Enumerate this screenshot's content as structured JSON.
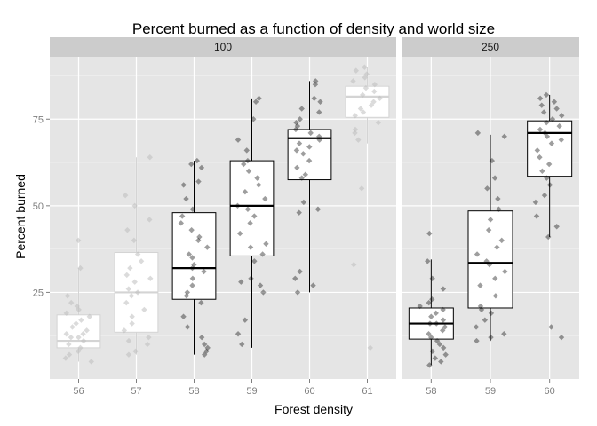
{
  "chart_data": {
    "type": "boxplot",
    "title": "Percent burned as a function of density and world size",
    "xlabel": "Forest density",
    "ylabel": "Percent burned",
    "ylim": [
      0,
      93
    ],
    "yticks": [
      25,
      50,
      75
    ],
    "grid": true,
    "facet_variable": "world size",
    "facets": [
      {
        "label": "100",
        "categories": [
          "56",
          "57",
          "58",
          "59",
          "60",
          "61"
        ],
        "boxes": [
          {
            "x": "56",
            "whisker_low": 5,
            "q1": 9,
            "median": 11,
            "q3": 18.5,
            "whisker_high": 32,
            "color": "#d4d4d4",
            "points": [
              40,
              32,
              24,
              22,
              21,
              20,
              19,
              18,
              17,
              16,
              15,
              14,
              13,
              13,
              12,
              12,
              11,
              10,
              9,
              8,
              7,
              6,
              5
            ]
          },
          {
            "x": "57",
            "whisker_low": 7,
            "q1": 13.5,
            "median": 25,
            "q3": 36.5,
            "whisker_high": 64,
            "color": "#d4d4d4",
            "points": [
              64,
              53,
              50,
              46,
              43,
              40,
              36,
              34,
              32,
              30,
              29,
              28,
              26,
              25,
              24,
              22,
              20,
              18,
              16,
              14,
              12,
              11,
              10,
              8,
              7
            ]
          },
          {
            "x": "58",
            "whisker_low": 7,
            "q1": 23,
            "median": 32,
            "q3": 48,
            "whisker_high": 63,
            "color": "#000000",
            "points": [
              63,
              62,
              61,
              57,
              56,
              52,
              49,
              47,
              45,
              43,
              41,
              40,
              38,
              36,
              35,
              33,
              32,
              31,
              29,
              27,
              25,
              24,
              22,
              18,
              15,
              12,
              10,
              9,
              8,
              7
            ]
          },
          {
            "x": "59",
            "whisker_low": 9,
            "q1": 35.5,
            "median": 50,
            "q3": 63,
            "whisker_high": 81,
            "color": "#000000",
            "points": [
              81,
              80,
              75,
              69,
              66,
              63,
              62,
              60,
              58,
              56,
              54,
              52,
              50,
              49,
              47,
              45,
              42,
              39,
              38,
              36,
              34,
              29,
              28,
              27,
              25,
              17,
              13,
              10
            ]
          },
          {
            "x": "60",
            "whisker_low": 25,
            "q1": 57.5,
            "median": 69.5,
            "q3": 72,
            "whisker_high": 86,
            "color": "#000000",
            "points": [
              86,
              85,
              81,
              80,
              78,
              77,
              75,
              74,
              73,
              72,
              71,
              70,
              69,
              68,
              67,
              66,
              65,
              63,
              61,
              59,
              58,
              51,
              49,
              48,
              31,
              29,
              27,
              25
            ]
          },
          {
            "x": "61",
            "whisker_low": 68,
            "q1": 75.5,
            "median": 81.5,
            "q3": 84.5,
            "whisker_high": 90,
            "color": "#d4d4d4",
            "points": [
              90,
              89,
              88,
              87,
              86,
              85,
              84,
              83,
              82,
              81,
              80,
              79,
              78,
              77,
              76,
              74,
              72,
              71,
              69,
              55,
              33,
              9
            ]
          }
        ]
      },
      {
        "label": "250",
        "categories": [
          "58",
          "59",
          "60"
        ],
        "boxes": [
          {
            "x": "58",
            "whisker_low": 4,
            "q1": 11.5,
            "median": 16,
            "q3": 20.5,
            "whisker_high": 34.5,
            "color": "#000000",
            "points": [
              42,
              34,
              29,
              26,
              23,
              22,
              21,
              20,
              19,
              18,
              17,
              16,
              16,
              15,
              14,
              13,
              12,
              11,
              10,
              9,
              8,
              7,
              6,
              5,
              4
            ]
          },
          {
            "x": "59",
            "whisker_low": 11,
            "q1": 20.5,
            "median": 33.5,
            "q3": 48.5,
            "whisker_high": 70.5,
            "color": "#000000",
            "points": [
              71,
              70,
              63,
              58,
              55,
              52,
              49,
              46,
              43,
              40,
              38,
              36,
              34,
              33,
              31,
              29,
              27,
              24,
              21,
              20,
              19,
              17,
              15,
              13,
              12,
              11
            ]
          },
          {
            "x": "60",
            "whisker_low": 41,
            "q1": 58.5,
            "median": 71,
            "q3": 74.5,
            "whisker_high": 82,
            "color": "#000000",
            "points": [
              82,
              81,
              80,
              79,
              78,
              77,
              76,
              75,
              74,
              73,
              72,
              71,
              70,
              69,
              68,
              66,
              64,
              62,
              60,
              58,
              56,
              53,
              51,
              47,
              44,
              41,
              15,
              12
            ]
          }
        ]
      }
    ]
  }
}
